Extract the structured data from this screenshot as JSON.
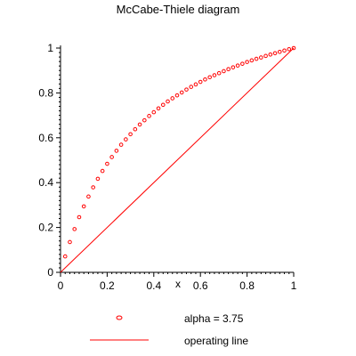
{
  "chart_data": {
    "type": "scatter",
    "title": "McCabe-Thiele diagram",
    "xlabel": "x",
    "ylabel": "",
    "xlim": [
      0,
      1
    ],
    "ylim": [
      0,
      1
    ],
    "xticks": [
      "0",
      "0.2",
      "0.4",
      "0.6",
      "0.8",
      "1"
    ],
    "yticks": [
      "0",
      "0.2",
      "0.4",
      "0.6",
      "0.8",
      "1"
    ],
    "grid": false,
    "legend_position": "bottom",
    "series": [
      {
        "name": "alpha = 3.75",
        "kind": "points",
        "color": "#ff0000",
        "x": [
          0.02,
          0.04,
          0.06,
          0.08,
          0.1,
          0.12,
          0.14,
          0.16,
          0.18,
          0.2,
          0.22,
          0.24,
          0.26,
          0.28,
          0.3,
          0.32,
          0.34,
          0.36,
          0.38,
          0.4,
          0.42,
          0.44,
          0.46,
          0.48,
          0.5,
          0.52,
          0.54,
          0.56,
          0.58,
          0.6,
          0.62,
          0.64,
          0.66,
          0.68,
          0.7,
          0.72,
          0.74,
          0.76,
          0.78,
          0.8,
          0.82,
          0.84,
          0.86,
          0.88,
          0.9,
          0.92,
          0.94,
          0.96,
          0.98,
          1.0
        ],
        "y": [
          0.071,
          0.135,
          0.193,
          0.246,
          0.294,
          0.338,
          0.379,
          0.417,
          0.452,
          0.484,
          0.514,
          0.542,
          0.569,
          0.593,
          0.616,
          0.638,
          0.659,
          0.678,
          0.697,
          0.714,
          0.731,
          0.747,
          0.762,
          0.776,
          0.789,
          0.802,
          0.815,
          0.827,
          0.838,
          0.849,
          0.86,
          0.87,
          0.879,
          0.888,
          0.897,
          0.906,
          0.914,
          0.922,
          0.93,
          0.938,
          0.945,
          0.952,
          0.958,
          0.965,
          0.971,
          0.977,
          0.983,
          0.989,
          0.995,
          1.0
        ]
      },
      {
        "name": "operating line",
        "kind": "line",
        "color": "#ff0000",
        "x": [
          0,
          1
        ],
        "y": [
          0,
          1
        ]
      }
    ]
  }
}
